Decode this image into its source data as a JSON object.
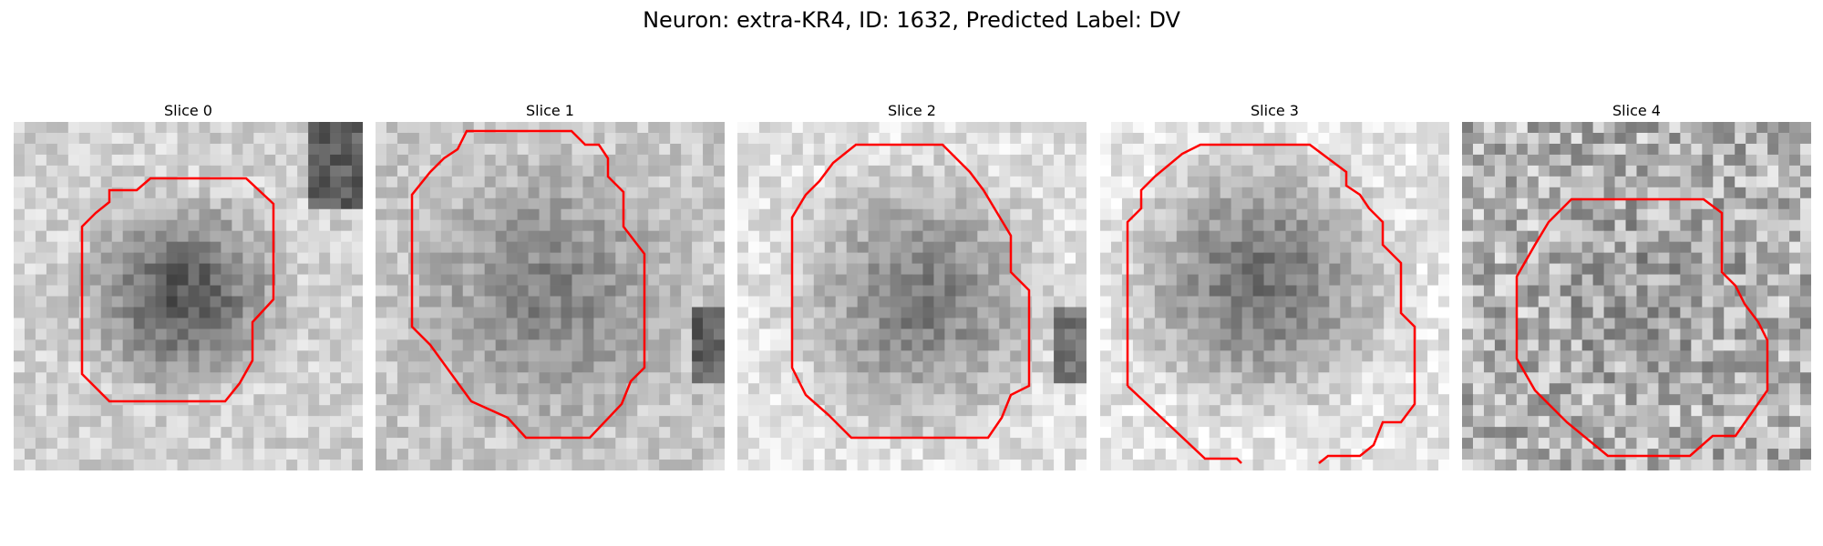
{
  "figure": {
    "title": "Neuron: extra-KR4, ID: 1632, Predicted Label: DV",
    "outline_color": "#ff0000",
    "colormap": "gray",
    "slices": [
      {
        "label": "Slice 0"
      },
      {
        "label": "Slice 1"
      },
      {
        "label": "Slice 2"
      },
      {
        "label": "Slice 3"
      },
      {
        "label": "Slice 4"
      }
    ]
  }
}
